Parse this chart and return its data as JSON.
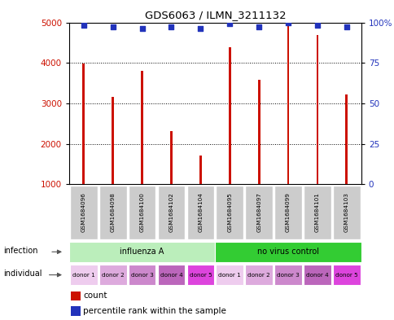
{
  "title": "GDS6063 / ILMN_3211132",
  "samples": [
    "GSM1684096",
    "GSM1684098",
    "GSM1684100",
    "GSM1684102",
    "GSM1684104",
    "GSM1684095",
    "GSM1684097",
    "GSM1684099",
    "GSM1684101",
    "GSM1684103"
  ],
  "counts": [
    3990,
    3160,
    3800,
    2310,
    1720,
    4390,
    3580,
    4980,
    4680,
    3230
  ],
  "percentile_ranks": [
    98,
    97,
    96,
    97,
    96,
    99,
    97,
    100,
    98,
    97
  ],
  "bar_color": "#cc1100",
  "dot_color": "#2233bb",
  "ylim_left": [
    1000,
    5000
  ],
  "yticks_left": [
    1000,
    2000,
    3000,
    4000,
    5000
  ],
  "ylim_right": [
    0,
    100
  ],
  "yticks_right": [
    0,
    25,
    50,
    75,
    100
  ],
  "infection_groups": [
    {
      "label": "influenza A",
      "start": 0,
      "end": 5,
      "color": "#bbeebb"
    },
    {
      "label": "no virus control",
      "start": 5,
      "end": 10,
      "color": "#33cc33"
    }
  ],
  "individual_labels": [
    "donor 1",
    "donor 2",
    "donor 3",
    "donor 4",
    "donor 5",
    "donor 1",
    "donor 2",
    "donor 3",
    "donor 4",
    "donor 5"
  ],
  "individual_colors": [
    "#eeccee",
    "#ddaadd",
    "#cc88cc",
    "#bb66bb",
    "#dd44dd",
    "#eeccee",
    "#ddaadd",
    "#cc88cc",
    "#bb66bb",
    "#dd44dd"
  ],
  "sample_box_color": "#cccccc",
  "infection_row_label": "infection",
  "individual_row_label": "individual",
  "legend_count_label": "count",
  "legend_pct_label": "percentile rank within the sample",
  "bar_width": 0.08,
  "dot_size": 18
}
